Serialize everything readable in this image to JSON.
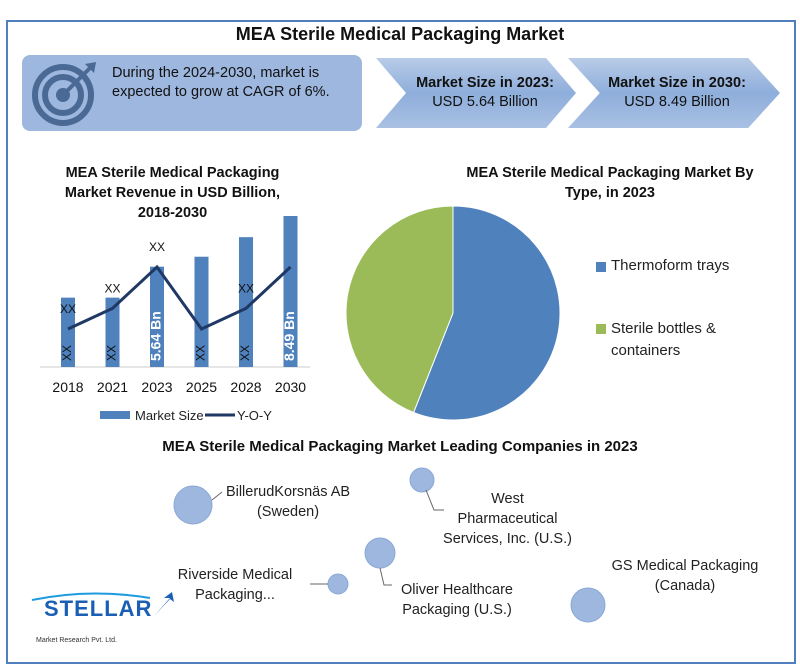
{
  "header": {
    "title": "MEA Sterile Medical Packaging Market"
  },
  "cagr_box": {
    "text": "During the 2024-2030, market is expected to grow at CAGR of 6%.",
    "icon": "target-icon"
  },
  "market_2023": {
    "label": "Market Size in 2023:",
    "value": "USD 5.64 Billion"
  },
  "market_2030": {
    "label": "Market Size in 2030:",
    "value": "USD 8.49 Billion"
  },
  "colors": {
    "bar": "#4f81bd",
    "line": "#1f3864",
    "pie_thermoform": "#4f81bd",
    "pie_bottles": "#9bbb59",
    "bubble": "#9db7de"
  },
  "chart_data": [
    {
      "type": "bar",
      "title": "MEA Sterile Medical Packaging Market Revenue in USD Billion, 2018-2030",
      "categories": [
        "2018",
        "2021",
        "2023",
        "2025",
        "2028",
        "2030"
      ],
      "series": [
        {
          "name": "Market Size",
          "values": [
            3.9,
            3.9,
            5.64,
            6.2,
            7.3,
            8.49
          ],
          "data_labels": [
            "XX",
            "XX",
            "5.64 Bn",
            "XX",
            "XX",
            "8.49 Bn"
          ]
        },
        {
          "name": "Y-O-Y",
          "type": "line",
          "values": [
            2,
            3,
            5,
            2,
            3,
            5
          ],
          "data_labels": [
            "XX",
            "XX",
            "XX",
            "",
            "XX",
            ""
          ]
        }
      ],
      "legend": "bottom",
      "grid": false
    },
    {
      "type": "pie",
      "title": "MEA Sterile Medical Packaging Market By Type, in 2023",
      "categories": [
        "Thermoform trays",
        "Sterile bottles & containers"
      ],
      "values": [
        56,
        44
      ],
      "legend": "right"
    }
  ],
  "companies": {
    "title": "MEA Sterile Medical Packaging Market Leading Companies in 2023",
    "items": [
      {
        "name": "BillerudKorsnäs AB (Sweden)"
      },
      {
        "name": "West Pharmaceutical Services, Inc. (U.S.)"
      },
      {
        "name": "GS Medical Packaging (Canada)"
      },
      {
        "name": "Riverside Medical Packaging..."
      },
      {
        "name": "Oliver Healthcare Packaging (U.S.)"
      }
    ]
  },
  "logo": {
    "name": "STELLAR",
    "subtitle": "Market Research Pvt. Ltd."
  }
}
